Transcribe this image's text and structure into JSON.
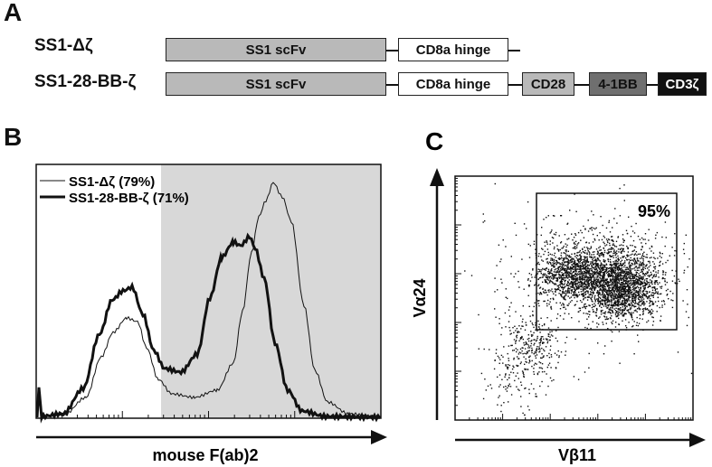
{
  "panel_a": {
    "letter": "A",
    "constructs": [
      {
        "label": "SS1-Δζ",
        "domains": [
          "SS1 scFv",
          "CD8a hinge"
        ]
      },
      {
        "label": "SS1-28-BB-ζ",
        "domains": [
          "SS1 scFv",
          "CD8a hinge",
          "CD28",
          "4-1BB",
          "CD3ζ"
        ]
      }
    ]
  },
  "panel_b": {
    "letter": "B",
    "xlabel": "mouse F(ab)2",
    "legend": [
      {
        "label": "SS1-Δζ (79%)",
        "style": "thin"
      },
      {
        "label": "SS1-28-BB-ζ (71%)",
        "style": "thick"
      }
    ],
    "shade_color": "#d8d8d8"
  },
  "panel_c": {
    "letter": "C",
    "xlabel": "Vβ11",
    "ylabel": "Vα24",
    "gate_pct": "95%"
  }
}
